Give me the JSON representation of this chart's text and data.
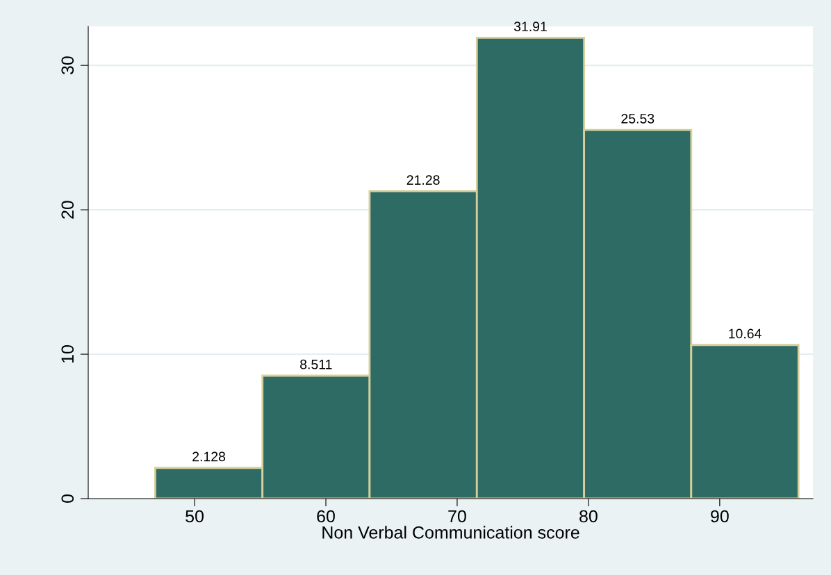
{
  "chart_data": {
    "type": "histogram",
    "xlabel": "Non Verbal Communication score",
    "bins": [
      47,
      55.17,
      63.33,
      71.5,
      79.67,
      87.83,
      96
    ],
    "values": [
      2.128,
      8.511,
      21.28,
      31.91,
      25.53,
      10.64
    ],
    "data_labels": true,
    "color": "#2e6b64",
    "xlim": [
      41.9,
      97.1
    ],
    "xticks": [
      50,
      60,
      70,
      80,
      90
    ],
    "ylim": [
      0,
      32.7
    ],
    "yticks": [
      0,
      10,
      20,
      30
    ],
    "grid": "y"
  }
}
